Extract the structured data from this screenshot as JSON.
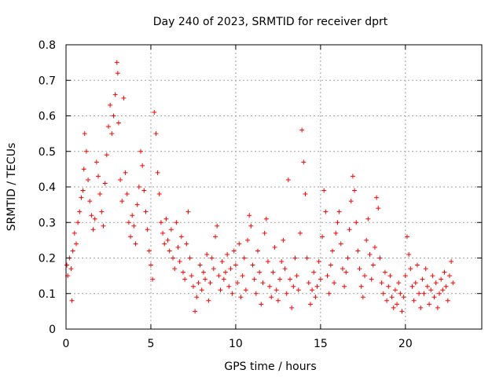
{
  "chart_data": {
    "type": "scatter",
    "title": "Day 240 of 2023, SRMTID for receiver dprt",
    "xlabel": "GPS time / hours",
    "ylabel": "SRMTID / TECUs",
    "xlim": [
      0,
      24.5
    ],
    "ylim": [
      0,
      0.8
    ],
    "xticks": [
      0,
      5,
      10,
      15,
      20
    ],
    "yticks": [
      0,
      0.1,
      0.2,
      0.3,
      0.4,
      0.5,
      0.6,
      0.7,
      0.8
    ],
    "xtick_labels": [
      "0",
      "5",
      "10",
      "15",
      "20"
    ],
    "ytick_labels": [
      "0",
      "0.1",
      "0.2",
      "0.3",
      "0.4",
      "0.5",
      "0.6",
      "0.7",
      "0.8"
    ],
    "grid": true,
    "marker": "+",
    "marker_color": "#ff0000",
    "x_data_range": [
      0,
      22.8
    ],
    "series": [
      {
        "name": "SRMTID",
        "points": [
          [
            0.05,
            0.18
          ],
          [
            0.1,
            0.15
          ],
          [
            0.2,
            0.2
          ],
          [
            0.3,
            0.17
          ],
          [
            0.35,
            0.08
          ],
          [
            0.4,
            0.22
          ],
          [
            0.5,
            0.27
          ],
          [
            0.6,
            0.24
          ],
          [
            0.7,
            0.3
          ],
          [
            0.8,
            0.33
          ],
          [
            0.9,
            0.37
          ],
          [
            1.0,
            0.39
          ],
          [
            1.05,
            0.45
          ],
          [
            1.1,
            0.55
          ],
          [
            1.2,
            0.5
          ],
          [
            1.3,
            0.42
          ],
          [
            1.4,
            0.36
          ],
          [
            1.5,
            0.32
          ],
          [
            1.6,
            0.28
          ],
          [
            1.7,
            0.31
          ],
          [
            1.8,
            0.47
          ],
          [
            1.9,
            0.43
          ],
          [
            2.0,
            0.38
          ],
          [
            2.1,
            0.33
          ],
          [
            2.2,
            0.29
          ],
          [
            2.3,
            0.41
          ],
          [
            2.4,
            0.49
          ],
          [
            2.5,
            0.57
          ],
          [
            2.6,
            0.63
          ],
          [
            2.7,
            0.55
          ],
          [
            2.8,
            0.6
          ],
          [
            2.9,
            0.66
          ],
          [
            3.0,
            0.75
          ],
          [
            3.05,
            0.72
          ],
          [
            3.1,
            0.58
          ],
          [
            3.2,
            0.42
          ],
          [
            3.3,
            0.36
          ],
          [
            3.4,
            0.65
          ],
          [
            3.5,
            0.44
          ],
          [
            3.6,
            0.38
          ],
          [
            3.7,
            0.3
          ],
          [
            3.8,
            0.26
          ],
          [
            3.9,
            0.32
          ],
          [
            4.0,
            0.29
          ],
          [
            4.1,
            0.24
          ],
          [
            4.2,
            0.35
          ],
          [
            4.3,
            0.4
          ],
          [
            4.4,
            0.5
          ],
          [
            4.5,
            0.46
          ],
          [
            4.6,
            0.39
          ],
          [
            4.7,
            0.33
          ],
          [
            4.8,
            0.28
          ],
          [
            4.9,
            0.22
          ],
          [
            5.0,
            0.18
          ],
          [
            5.1,
            0.14
          ],
          [
            5.2,
            0.61
          ],
          [
            5.3,
            0.55
          ],
          [
            5.4,
            0.44
          ],
          [
            5.5,
            0.38
          ],
          [
            5.6,
            0.3
          ],
          [
            5.7,
            0.27
          ],
          [
            5.8,
            0.24
          ],
          [
            5.9,
            0.31
          ],
          [
            6.0,
            0.25
          ],
          [
            6.1,
            0.22
          ],
          [
            6.2,
            0.28
          ],
          [
            6.3,
            0.2
          ],
          [
            6.4,
            0.17
          ],
          [
            6.5,
            0.3
          ],
          [
            6.6,
            0.23
          ],
          [
            6.7,
            0.19
          ],
          [
            6.8,
            0.26
          ],
          [
            6.9,
            0.16
          ],
          [
            7.0,
            0.14
          ],
          [
            7.1,
            0.24
          ],
          [
            7.2,
            0.33
          ],
          [
            7.3,
            0.2
          ],
          [
            7.4,
            0.15
          ],
          [
            7.5,
            0.12
          ],
          [
            7.6,
            0.05
          ],
          [
            7.7,
            0.09
          ],
          [
            7.8,
            0.13
          ],
          [
            7.9,
            0.18
          ],
          [
            8.0,
            0.11
          ],
          [
            8.1,
            0.16
          ],
          [
            8.2,
            0.14
          ],
          [
            8.3,
            0.21
          ],
          [
            8.4,
            0.08
          ],
          [
            8.5,
            0.13
          ],
          [
            8.6,
            0.2
          ],
          [
            8.7,
            0.17
          ],
          [
            8.8,
            0.26
          ],
          [
            8.9,
            0.29
          ],
          [
            9.0,
            0.15
          ],
          [
            9.1,
            0.11
          ],
          [
            9.2,
            0.19
          ],
          [
            9.3,
            0.14
          ],
          [
            9.4,
            0.16
          ],
          [
            9.5,
            0.21
          ],
          [
            9.6,
            0.12
          ],
          [
            9.7,
            0.17
          ],
          [
            9.8,
            0.1
          ],
          [
            9.9,
            0.22
          ],
          [
            10.0,
            0.18
          ],
          [
            10.1,
            0.13
          ],
          [
            10.2,
            0.24
          ],
          [
            10.3,
            0.09
          ],
          [
            10.4,
            0.15
          ],
          [
            10.5,
            0.2
          ],
          [
            10.6,
            0.11
          ],
          [
            10.7,
            0.25
          ],
          [
            10.8,
            0.32
          ],
          [
            10.9,
            0.29
          ],
          [
            11.0,
            0.18
          ],
          [
            11.1,
            0.14
          ],
          [
            11.2,
            0.1
          ],
          [
            11.3,
            0.22
          ],
          [
            11.4,
            0.16
          ],
          [
            11.5,
            0.07
          ],
          [
            11.6,
            0.13
          ],
          [
            11.7,
            0.27
          ],
          [
            11.8,
            0.31
          ],
          [
            11.9,
            0.19
          ],
          [
            12.0,
            0.12
          ],
          [
            12.1,
            0.09
          ],
          [
            12.2,
            0.16
          ],
          [
            12.3,
            0.23
          ],
          [
            12.4,
            0.11
          ],
          [
            12.5,
            0.08
          ],
          [
            12.6,
            0.14
          ],
          [
            12.7,
            0.19
          ],
          [
            12.8,
            0.25
          ],
          [
            12.9,
            0.17
          ],
          [
            13.0,
            0.1
          ],
          [
            13.1,
            0.42
          ],
          [
            13.2,
            0.14
          ],
          [
            13.3,
            0.06
          ],
          [
            13.4,
            0.12
          ],
          [
            13.5,
            0.2
          ],
          [
            13.6,
            0.15
          ],
          [
            13.7,
            0.11
          ],
          [
            13.8,
            0.27
          ],
          [
            13.9,
            0.56
          ],
          [
            14.0,
            0.47
          ],
          [
            14.1,
            0.38
          ],
          [
            14.2,
            0.2
          ],
          [
            14.3,
            0.13
          ],
          [
            14.4,
            0.07
          ],
          [
            14.5,
            0.11
          ],
          [
            14.6,
            0.16
          ],
          [
            14.7,
            0.09
          ],
          [
            14.8,
            0.12
          ],
          [
            14.9,
            0.19
          ],
          [
            15.0,
            0.14
          ],
          [
            15.1,
            0.26
          ],
          [
            15.2,
            0.39
          ],
          [
            15.3,
            0.33
          ],
          [
            15.4,
            0.15
          ],
          [
            15.5,
            0.1
          ],
          [
            15.6,
            0.18
          ],
          [
            15.7,
            0.22
          ],
          [
            15.8,
            0.13
          ],
          [
            15.9,
            0.27
          ],
          [
            16.0,
            0.3
          ],
          [
            16.1,
            0.33
          ],
          [
            16.2,
            0.24
          ],
          [
            16.3,
            0.17
          ],
          [
            16.4,
            0.12
          ],
          [
            16.5,
            0.16
          ],
          [
            16.6,
            0.2
          ],
          [
            16.7,
            0.28
          ],
          [
            16.8,
            0.36
          ],
          [
            16.9,
            0.43
          ],
          [
            17.0,
            0.39
          ],
          [
            17.1,
            0.3
          ],
          [
            17.2,
            0.22
          ],
          [
            17.3,
            0.17
          ],
          [
            17.4,
            0.12
          ],
          [
            17.5,
            0.09
          ],
          [
            17.6,
            0.15
          ],
          [
            17.7,
            0.25
          ],
          [
            17.8,
            0.31
          ],
          [
            17.9,
            0.21
          ],
          [
            18.0,
            0.14
          ],
          [
            18.1,
            0.18
          ],
          [
            18.2,
            0.23
          ],
          [
            18.3,
            0.37
          ],
          [
            18.4,
            0.34
          ],
          [
            18.5,
            0.2
          ],
          [
            18.6,
            0.13
          ],
          [
            18.7,
            0.1
          ],
          [
            18.8,
            0.16
          ],
          [
            18.9,
            0.08
          ],
          [
            19.0,
            0.12
          ],
          [
            19.1,
            0.15
          ],
          [
            19.2,
            0.09
          ],
          [
            19.3,
            0.06
          ],
          [
            19.4,
            0.11
          ],
          [
            19.5,
            0.07
          ],
          [
            19.6,
            0.13
          ],
          [
            19.7,
            0.1
          ],
          [
            19.8,
            0.05
          ],
          [
            19.9,
            0.09
          ],
          [
            20.0,
            0.15
          ],
          [
            20.1,
            0.26
          ],
          [
            20.2,
            0.21
          ],
          [
            20.3,
            0.17
          ],
          [
            20.4,
            0.12
          ],
          [
            20.5,
            0.08
          ],
          [
            20.6,
            0.13
          ],
          [
            20.7,
            0.18
          ],
          [
            20.8,
            0.1
          ],
          [
            20.9,
            0.06
          ],
          [
            21.0,
            0.14
          ],
          [
            21.1,
            0.1
          ],
          [
            21.2,
            0.17
          ],
          [
            21.3,
            0.12
          ],
          [
            21.4,
            0.07
          ],
          [
            21.5,
            0.11
          ],
          [
            21.6,
            0.15
          ],
          [
            21.7,
            0.09
          ],
          [
            21.8,
            0.13
          ],
          [
            21.9,
            0.06
          ],
          [
            22.0,
            0.1
          ],
          [
            22.1,
            0.14
          ],
          [
            22.2,
            0.11
          ],
          [
            22.3,
            0.16
          ],
          [
            22.4,
            0.12
          ],
          [
            22.5,
            0.08
          ],
          [
            22.6,
            0.15
          ],
          [
            22.7,
            0.19
          ],
          [
            22.8,
            0.13
          ]
        ]
      }
    ]
  }
}
